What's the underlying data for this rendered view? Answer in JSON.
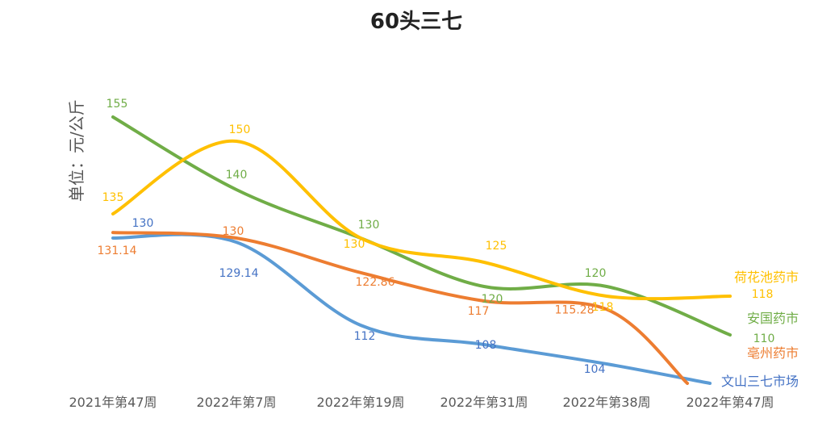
{
  "chart_data": {
    "type": "line",
    "title": "60头三七",
    "ylabel": "单位：元/公斤",
    "xlabel": "",
    "categories": [
      "2021年第47周",
      "2022年第7周",
      "2022年第19周",
      "2022年第31周",
      "2022年第38周",
      "2022年第47周"
    ],
    "ylim": [
      100,
      160
    ],
    "grid": false,
    "legend": "inline-right",
    "series": [
      {
        "name": "荷花池药市",
        "color": "#FFC000",
        "values": [
          135,
          150,
          130,
          125,
          118,
          118
        ],
        "labels": [
          "135",
          "150",
          "130",
          "125",
          "118",
          "118"
        ]
      },
      {
        "name": "安国药市",
        "color": "#70AD47",
        "values": [
          155,
          140,
          130,
          120,
          120,
          110
        ],
        "labels": [
          "155",
          "140",
          "130",
          "120",
          "120",
          "110"
        ]
      },
      {
        "name": "亳州药市",
        "color": "#ED7D31",
        "values": [
          131.14,
          130,
          122.86,
          117,
          115.28,
          100
        ],
        "labels": [
          "131.14",
          "130",
          "122.86",
          "117",
          "115.28",
          ""
        ]
      },
      {
        "name": "文山三七市场",
        "color": "#5B9BD5",
        "label_color": "#4472C4",
        "values": [
          130,
          129.14,
          112,
          108,
          104,
          100
        ],
        "labels": [
          "130",
          "129.14",
          "112",
          "108",
          "104",
          ""
        ]
      }
    ]
  }
}
